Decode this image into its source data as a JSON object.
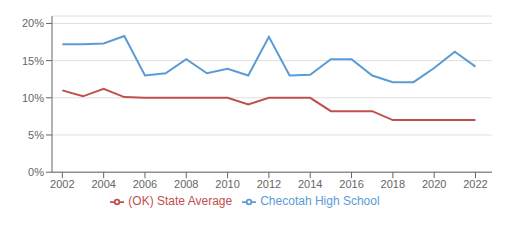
{
  "chart_data": {
    "type": "line",
    "x": [
      2002,
      2003,
      2004,
      2005,
      2006,
      2007,
      2008,
      2009,
      2010,
      2011,
      2012,
      2013,
      2014,
      2015,
      2016,
      2017,
      2018,
      2019,
      2020,
      2021,
      2022
    ],
    "series": [
      {
        "name": "Checotah High School",
        "color": "#5b9bd5",
        "values": [
          0.172,
          0.172,
          0.173,
          0.183,
          0.13,
          0.133,
          0.152,
          0.133,
          0.139,
          0.13,
          0.182,
          0.13,
          0.131,
          0.152,
          0.152,
          0.13,
          0.121,
          0.121,
          0.14,
          0.162,
          0.142
        ]
      },
      {
        "name": "(OK) State Average",
        "color": "#c0504d",
        "values": [
          0.11,
          0.102,
          0.112,
          0.101,
          0.1,
          0.1,
          0.1,
          0.1,
          0.1,
          0.091,
          0.1,
          0.1,
          0.1,
          0.082,
          0.082,
          0.082,
          0.07,
          0.07,
          0.07,
          0.07,
          0.07
        ]
      }
    ],
    "xlim": [
      2001.5,
      2022.8
    ],
    "xticks": [
      2002,
      2004,
      2006,
      2008,
      2010,
      2012,
      2014,
      2016,
      2018,
      2020,
      2022
    ],
    "ylim": [
      0.0,
      0.21
    ],
    "yticks": [
      {
        "value": 0.0,
        "label": "0%"
      },
      {
        "value": 0.05,
        "label": "5%"
      },
      {
        "value": 0.1,
        "label": "10%"
      },
      {
        "value": 0.15,
        "label": "15%"
      },
      {
        "value": 0.2,
        "label": "20%"
      }
    ],
    "grid": "y",
    "legend": "bottom"
  }
}
